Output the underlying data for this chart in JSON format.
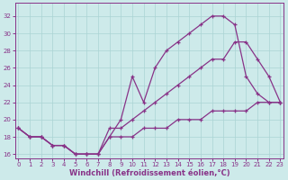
{
  "xlabel": "Windchill (Refroidissement éolien,°C)",
  "background_color": "#cdeaea",
  "grid_color": "#aad4d4",
  "line_color": "#883388",
  "x_ticks": [
    0,
    1,
    2,
    3,
    4,
    5,
    6,
    7,
    8,
    9,
    10,
    11,
    12,
    13,
    14,
    15,
    16,
    17,
    18,
    19,
    20,
    21,
    22,
    23
  ],
  "y_ticks": [
    16,
    18,
    20,
    22,
    24,
    26,
    28,
    30,
    32
  ],
  "ylim": [
    15.5,
    33.5
  ],
  "xlim": [
    -0.3,
    23.3
  ],
  "line1_x": [
    0,
    1,
    2,
    3,
    4,
    5,
    6,
    7,
    8,
    9,
    10,
    11,
    12,
    13,
    14,
    15,
    16,
    17,
    18,
    19,
    20,
    21,
    22,
    23
  ],
  "line1_y": [
    19,
    18,
    18,
    17,
    17,
    16,
    16,
    16,
    18,
    20,
    25,
    22,
    26,
    28,
    29,
    30,
    31,
    32,
    32,
    31,
    25,
    23,
    22,
    22
  ],
  "line2_x": [
    0,
    1,
    2,
    3,
    4,
    5,
    6,
    7,
    8,
    9,
    10,
    11,
    12,
    13,
    14,
    15,
    16,
    17,
    18,
    19,
    20,
    21,
    22,
    23
  ],
  "line2_y": [
    19,
    18,
    18,
    17,
    17,
    16,
    16,
    16,
    19,
    19,
    20,
    21,
    22,
    23,
    24,
    25,
    26,
    27,
    27,
    29,
    29,
    27,
    25,
    22
  ],
  "line3_x": [
    0,
    1,
    2,
    3,
    4,
    5,
    6,
    7,
    8,
    9,
    10,
    11,
    12,
    13,
    14,
    15,
    16,
    17,
    18,
    19,
    20,
    21,
    22,
    23
  ],
  "line3_y": [
    19,
    18,
    18,
    17,
    17,
    16,
    16,
    16,
    18,
    18,
    18,
    19,
    19,
    19,
    20,
    20,
    20,
    21,
    21,
    21,
    21,
    22,
    22,
    22
  ],
  "marker": "+",
  "markersize": 3.5,
  "linewidth": 0.9,
  "tick_fontsize": 5.0,
  "label_fontsize": 6.0
}
